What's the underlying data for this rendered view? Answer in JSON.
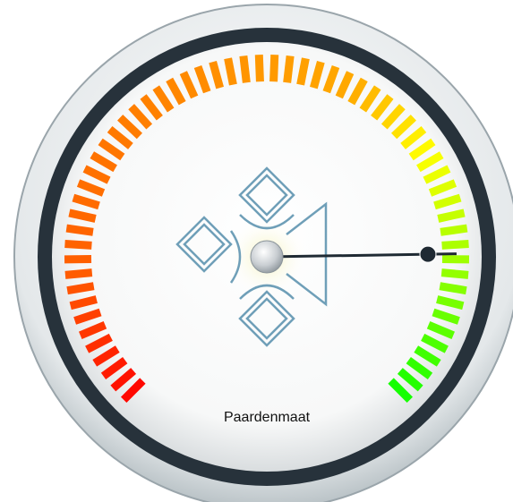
{
  "chart_data": {
    "type": "gauge",
    "title": "Paardenmaat",
    "value": 83,
    "ylim": [
      0,
      100
    ]
  }
}
